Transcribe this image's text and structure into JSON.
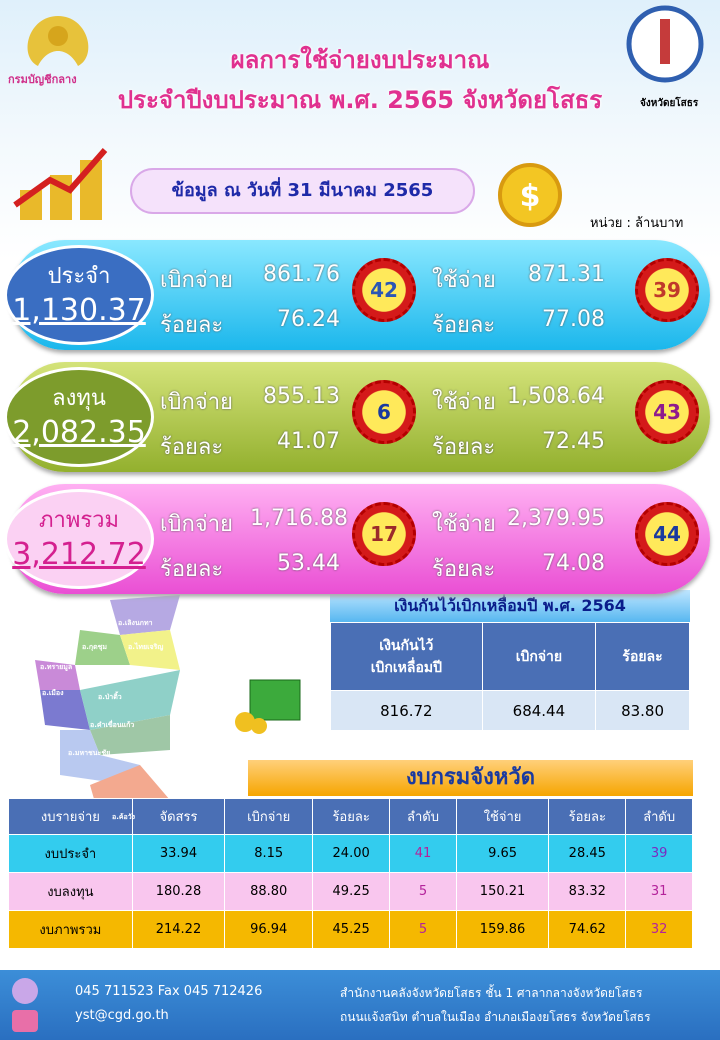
{
  "header": {
    "title1": "ผลการใช้จ่ายงบประมาณ",
    "title2": "ประจำปีงบประมาณ พ.ศ. 2565 จังหวัดยโสธร",
    "logo_left": "กรมบัญชีกลาง",
    "logo_right": "จังหวัดยโสธร"
  },
  "date": "ข้อมูล ณ วันที่ 31 มีนาคม 2565",
  "unit": "หน่วย : ล้านบาท",
  "summary": [
    {
      "label": "ประจำ",
      "total": "1,130.37",
      "disburse_label": "เบิกจ่าย",
      "disburse": "861.76",
      "disburse_rank": "42",
      "disburse_pct_label": "ร้อยละ",
      "disburse_pct": "76.24",
      "spend_label": "ใช้จ่าย",
      "spend": "871.31",
      "spend_rank": "39",
      "spend_pct_label": "ร้อยละ",
      "spend_pct": "77.08"
    },
    {
      "label": "ลงทุน",
      "total": "2,082.35",
      "disburse_label": "เบิกจ่าย",
      "disburse": "855.13",
      "disburse_rank": "6",
      "disburse_pct_label": "ร้อยละ",
      "disburse_pct": "41.07",
      "spend_label": "ใช้จ่าย",
      "spend": "1,508.64",
      "spend_rank": "43",
      "spend_pct_label": "ร้อยละ",
      "spend_pct": "72.45"
    },
    {
      "label": "ภาพรวม",
      "total": "3,212.72",
      "disburse_label": "เบิกจ่าย",
      "disburse": "1,716.88",
      "disburse_rank": "17",
      "disburse_pct_label": "ร้อยละ",
      "disburse_pct": "53.44",
      "spend_label": "ใช้จ่าย",
      "spend": "2,379.95",
      "spend_rank": "44",
      "spend_pct_label": "ร้อยละ",
      "spend_pct": "74.08"
    }
  ],
  "map": {
    "districts": [
      "อ.เลิงนกทา",
      "อ.กุดชุม",
      "อ.ไทยเจริญ",
      "อ.ทรายมูล",
      "อ.เมือง",
      "อ.ป่าติ้ว",
      "อ.คำเขื่อนแก้ว",
      "อ.มหาชนะชัย",
      "อ.ค้อวัง"
    ]
  },
  "carryover": {
    "title": "เงินกันไว้เบิกเหลื่อมปี พ.ศ. 2564",
    "headers": [
      "เงินกันไว้\nเบิกเหลื่อมปี",
      "เบิกจ่าย",
      "ร้อยละ"
    ],
    "rows": [
      [
        "816.72",
        "684.44",
        "83.80"
      ]
    ]
  },
  "provincial": {
    "title": "งบกรมจังหวัด",
    "headers": [
      "งบรายจ่าย",
      "จัดสรร",
      "เบิกจ่าย",
      "ร้อยละ",
      "ลำดับ",
      "ใช้จ่าย",
      "ร้อยละ",
      "ลำดับ"
    ],
    "rows": [
      [
        "งบประจำ",
        "33.94",
        "8.15",
        "24.00",
        "41",
        "9.65",
        "28.45",
        "39"
      ],
      [
        "งบลงทุน",
        "180.28",
        "88.80",
        "49.25",
        "5",
        "150.21",
        "83.32",
        "31"
      ],
      [
        "งบภาพรวม",
        "214.22",
        "96.94",
        "45.25",
        "5",
        "159.86",
        "74.62",
        "32"
      ]
    ]
  },
  "footer": {
    "phone": "045 711523  Fax 045 712426",
    "email": "yst@cgd.go.th",
    "address1": "สำนักงานคลังจังหวัดยโสธร  ชั้น 1 ศาลากลางจังหวัดยโสธร",
    "address2": "ถนนแจ้งสนิท  ตำบลในเมือง  อำเภอเมืองยโสธร  จังหวัดยโสธร"
  }
}
